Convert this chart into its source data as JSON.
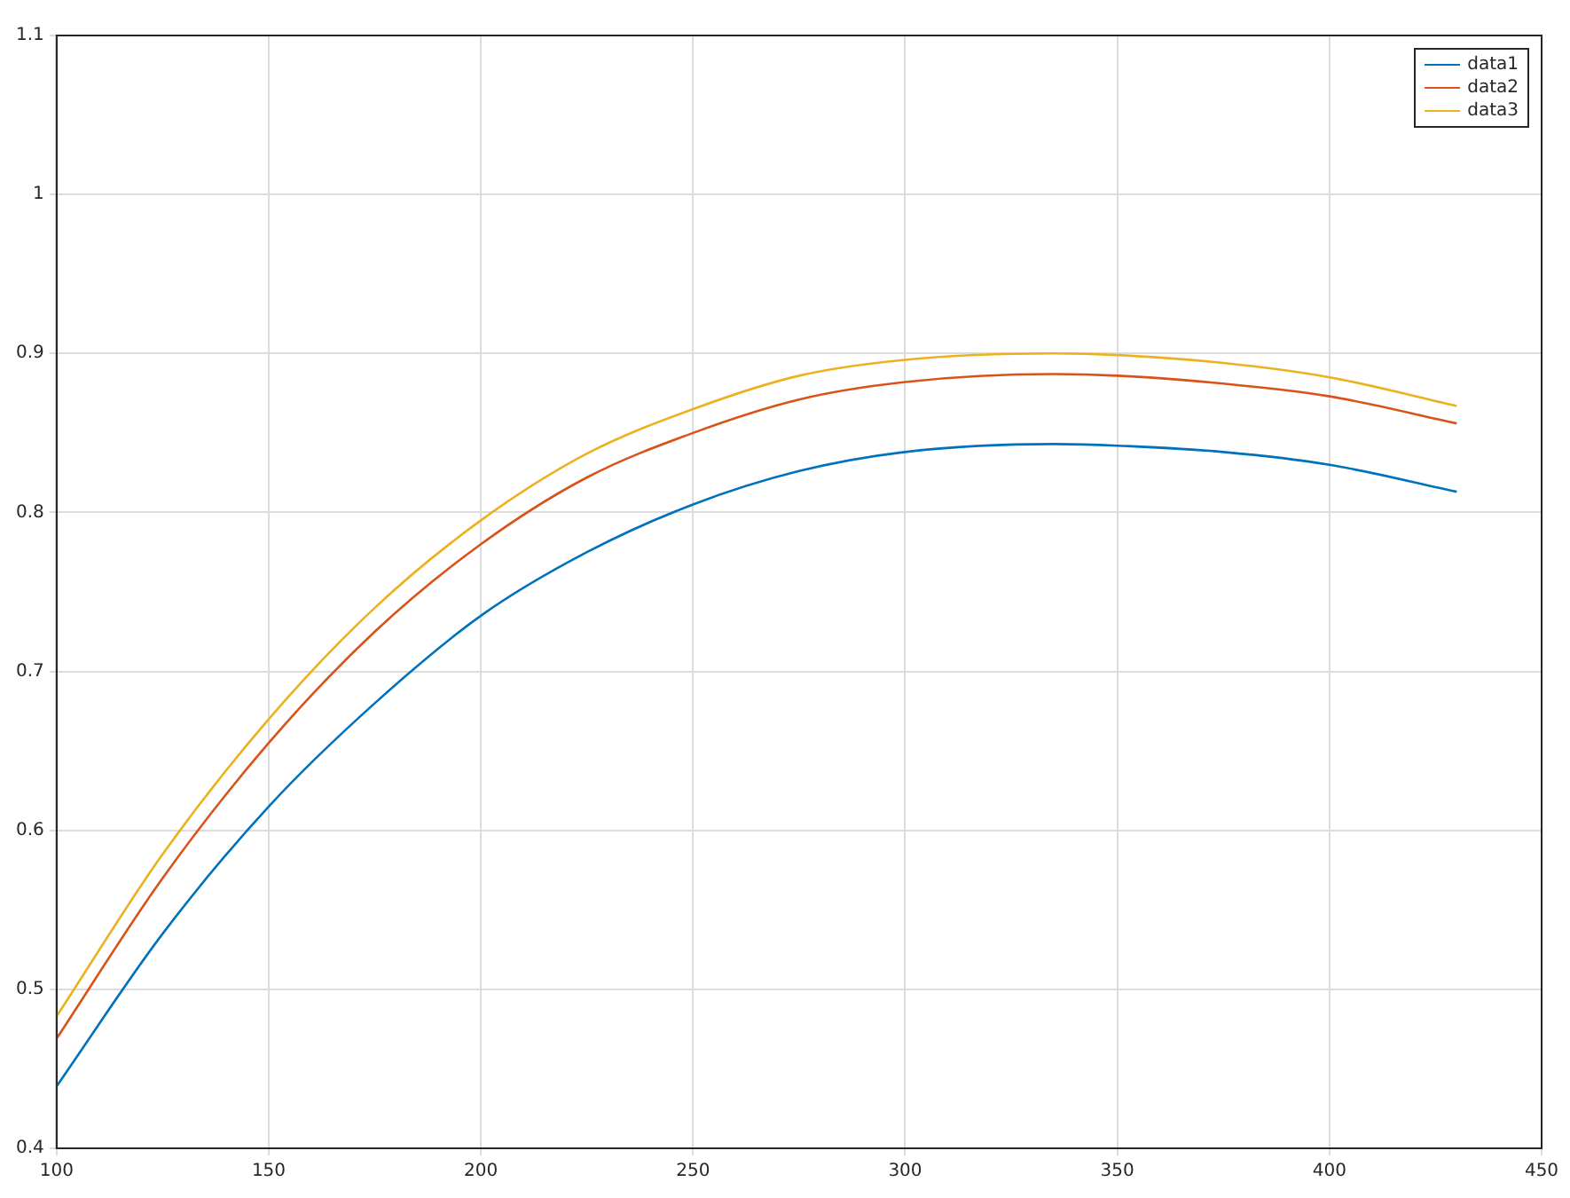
{
  "chart_data": {
    "type": "line",
    "x": [
      100,
      125,
      150,
      175,
      200,
      225,
      250,
      275,
      300,
      335,
      350,
      375,
      400,
      430
    ],
    "series": [
      {
        "name": "data1",
        "color": "#0072bd",
        "values": [
          0.439,
          0.535,
          0.615,
          0.68,
          0.735,
          0.775,
          0.805,
          0.826,
          0.838,
          0.843,
          0.842,
          0.838,
          0.83,
          0.813
        ]
      },
      {
        "name": "data2",
        "color": "#d95319",
        "values": [
          0.469,
          0.57,
          0.655,
          0.725,
          0.78,
          0.822,
          0.85,
          0.871,
          0.882,
          0.887,
          0.886,
          0.881,
          0.873,
          0.856
        ]
      },
      {
        "name": "data3",
        "color": "#edb120",
        "values": [
          0.483,
          0.585,
          0.67,
          0.74,
          0.795,
          0.837,
          0.865,
          0.886,
          0.896,
          0.9,
          0.899,
          0.894,
          0.885,
          0.867
        ]
      }
    ],
    "xlim": [
      100,
      450
    ],
    "xticks": [
      100,
      150,
      200,
      250,
      300,
      350,
      400,
      450
    ],
    "ylim": [
      0.4,
      1.1
    ],
    "yticks": [
      0.4,
      0.5,
      0.6,
      0.7,
      0.8,
      0.9,
      1,
      1.1
    ],
    "grid": true,
    "legend": "top right",
    "marker": "none",
    "line_style": "solid"
  }
}
